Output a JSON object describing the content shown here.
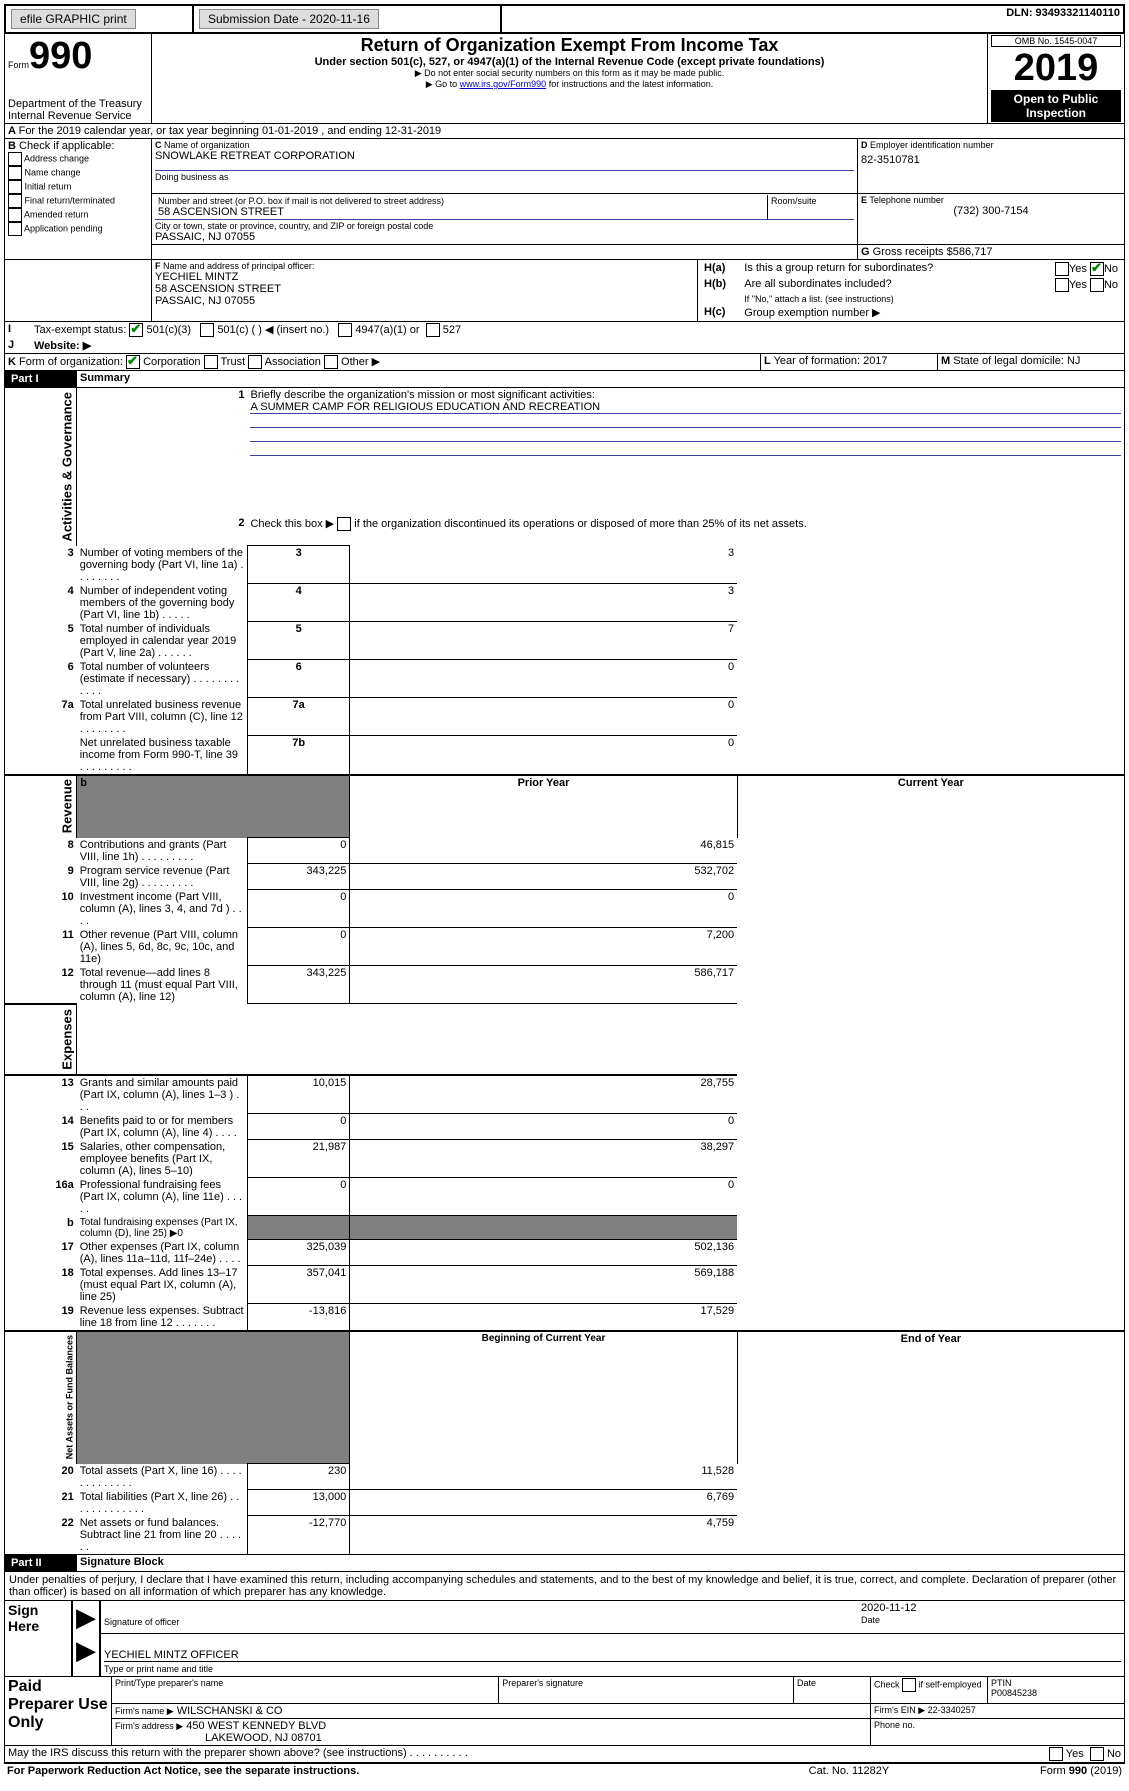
{
  "topbar": {
    "efile": "efile GRAPHIC print",
    "subdate_label": "Submission Date - 2020-11-16",
    "dln": "DLN: 93493321140110"
  },
  "header": {
    "form_label": "Form",
    "form_num": "990",
    "title": "Return of Organization Exempt From Income Tax",
    "subtitle": "Under section 501(c), 527, or 4947(a)(1) of the Internal Revenue Code (except private foundations)",
    "note1": "▶ Do not enter social security numbers on this form as it may be made public.",
    "note2": "▶ Go to ",
    "note2_link": "www.irs.gov/Form990",
    "note2_rest": " for instructions and the latest information.",
    "dept": "Department of the Treasury\nInternal Revenue Service",
    "omb": "OMB No. 1545-0047",
    "year": "2019",
    "open": "Open to Public Inspection"
  },
  "A": {
    "text": "For the 2019 calendar year, or tax year beginning 01-01-2019    , and ending 12-31-2019"
  },
  "B": {
    "label": "Check if applicable:",
    "opts": [
      "Address change",
      "Name change",
      "Initial return",
      "Final return/terminated",
      "Amended return",
      "Application pending"
    ]
  },
  "C": {
    "label": "Name of organization",
    "name": "SNOWLAKE RETREAT CORPORATION",
    "dba_label": "Doing business as",
    "addr_label": "Number and street (or P.O. box if mail is not delivered to street address)",
    "room_label": "Room/suite",
    "addr": "58 ASCENSION STREET",
    "city_label": "City or town, state or province, country, and ZIP or foreign postal code",
    "city": "PASSAIC, NJ  07055"
  },
  "D": {
    "label": "Employer identification number",
    "val": "82-3510781"
  },
  "E": {
    "label": "Telephone number",
    "val": "(732) 300-7154"
  },
  "G": {
    "label": "Gross receipts $",
    "val": "586,717"
  },
  "F": {
    "label": "Name and address of principal officer:",
    "name": "YECHIEL MINTZ",
    "addr": "58 ASCENSION STREET",
    "city": "PASSAIC, NJ  07055"
  },
  "H": {
    "a": "Is this a group return for subordinates?",
    "b": "Are all subordinates included?",
    "b_note": "If \"No,\" attach a list. (see instructions)",
    "c": "Group exemption number ▶",
    "yes": "Yes",
    "no": "No"
  },
  "I": {
    "label": "Tax-exempt status:",
    "c3": "501(c)(3)",
    "c": "501(c) (    ) ◀ (insert no.)",
    "a1": "4947(a)(1) or",
    "s527": "527"
  },
  "J": {
    "label": "Website: ▶"
  },
  "K": {
    "label": "Form of organization:",
    "corp": "Corporation",
    "trust": "Trust",
    "assoc": "Association",
    "other": "Other ▶"
  },
  "L": {
    "label": "Year of formation: 2017"
  },
  "M": {
    "label": "State of legal domicile: NJ"
  },
  "part1": {
    "title": "Part I",
    "heading": "Summary",
    "line1": "Briefly describe the organization's mission or most significant activities:",
    "mission": "A SUMMER CAMP FOR RELIGIOUS EDUCATION AND RECREATION",
    "line2": "Check this box ▶",
    "line2b": " if the organization discontinued its operations or disposed of more than 25% of its net assets.",
    "rows": [
      {
        "n": "3",
        "t": "Number of voting members of the governing body (Part VI, line 1a)  .   .   .   .   .   .   .   .",
        "box": "3",
        "v": "3"
      },
      {
        "n": "4",
        "t": "Number of independent voting members of the governing body (Part VI, line 1b)   .   .   .   .   .",
        "box": "4",
        "v": "3"
      },
      {
        "n": "5",
        "t": "Total number of individuals employed in calendar year 2019 (Part V, line 2a)   .   .   .   .   .   .",
        "box": "5",
        "v": "7"
      },
      {
        "n": "6",
        "t": "Total number of volunteers (estimate if necessary)   .   .   .   .   .   .   .   .   .   .   .   .",
        "box": "6",
        "v": "0"
      },
      {
        "n": "7a",
        "t": "Total unrelated business revenue from Part VIII, column (C), line 12   .   .   .   .   .   .   .   .",
        "box": "7a",
        "v": "0"
      },
      {
        "n": "",
        "t": "Net unrelated business taxable income from Form 990-T, line 39   .   .   .   .   .   .   .   .   .",
        "box": "7b",
        "v": "0"
      }
    ],
    "prior": "Prior Year",
    "current": "Current Year",
    "revenue_rows": [
      {
        "n": "8",
        "t": "Contributions and grants (Part VIII, line 1h)   .   .   .   .   .   .   .   .   .",
        "p": "0",
        "c": "46,815"
      },
      {
        "n": "9",
        "t": "Program service revenue (Part VIII, line 2g)   .   .   .   .   .   .   .   .   .",
        "p": "343,225",
        "c": "532,702"
      },
      {
        "n": "10",
        "t": "Investment income (Part VIII, column (A), lines 3, 4, and 7d )   .   .   .   .",
        "p": "0",
        "c": "0"
      },
      {
        "n": "11",
        "t": "Other revenue (Part VIII, column (A), lines 5, 6d, 8c, 9c, 10c, and 11e)",
        "p": "0",
        "c": "7,200"
      },
      {
        "n": "12",
        "t": "Total revenue—add lines 8 through 11 (must equal Part VIII, column (A), line 12)",
        "p": "343,225",
        "c": "586,717"
      }
    ],
    "expense_rows": [
      {
        "n": "13",
        "t": "Grants and similar amounts paid (Part IX, column (A), lines 1–3 )   .   .   .",
        "p": "10,015",
        "c": "28,755"
      },
      {
        "n": "14",
        "t": "Benefits paid to or for members (Part IX, column (A), line 4)   .   .   .   .",
        "p": "0",
        "c": "0"
      },
      {
        "n": "15",
        "t": "Salaries, other compensation, employee benefits (Part IX, column (A), lines 5–10)",
        "p": "21,987",
        "c": "38,297"
      },
      {
        "n": "16a",
        "t": "Professional fundraising fees (Part IX, column (A), line 11e)   .   .   .   .   .",
        "p": "0",
        "c": "0"
      },
      {
        "n": "b",
        "t": "Total fundraising expenses (Part IX, column (D), line 25) ▶0",
        "p": "",
        "c": "",
        "gray": true,
        "small": true
      },
      {
        "n": "17",
        "t": "Other expenses (Part IX, column (A), lines 11a–11d, 11f–24e)   .   .   .   .",
        "p": "325,039",
        "c": "502,136"
      },
      {
        "n": "18",
        "t": "Total expenses. Add lines 13–17 (must equal Part IX, column (A), line 25)",
        "p": "357,041",
        "c": "569,188"
      },
      {
        "n": "19",
        "t": "Revenue less expenses. Subtract line 18 from line 12   .   .   .   .   .   .   .",
        "p": "-13,816",
        "c": "17,529"
      }
    ],
    "begin": "Beginning of Current Year",
    "end": "End of Year",
    "net_rows": [
      {
        "n": "20",
        "t": "Total assets (Part X, line 16)   .   .   .   .   .   .   .   .   .   .   .   .   .",
        "p": "230",
        "c": "11,528"
      },
      {
        "n": "21",
        "t": "Total liabilities (Part X, line 26)   .   .   .   .   .   .   .   .   .   .   .   .   .",
        "p": "13,000",
        "c": "6,769"
      },
      {
        "n": "22",
        "t": "Net assets or fund balances. Subtract line 21 from line 20   .   .   .   .   .   .",
        "p": "-12,770",
        "c": "4,759"
      }
    ]
  },
  "side_labels": {
    "gov": "Activities & Governance",
    "rev": "Revenue",
    "exp": "Expenses",
    "net": "Net Assets or Fund Balances"
  },
  "part2": {
    "title": "Part II",
    "heading": "Signature Block",
    "declaration": "Under penalties of perjury, I declare that I have examined this return, including accompanying schedules and statements, and to the best of my knowledge and belief, it is true, correct, and complete. Declaration of preparer (other than officer) is based on all information of which preparer has any knowledge.",
    "sign_here": "Sign Here",
    "sig_officer": "Signature of officer",
    "date": "Date",
    "date_val": "2020-11-12",
    "officer_name": "YECHIEL MINTZ OFFICER",
    "type_name": "Type or print name and title",
    "paid": "Paid Preparer Use Only",
    "prep_name_label": "Print/Type preparer's name",
    "prep_sig_label": "Preparer's signature",
    "date_label": "Date",
    "check_self": "Check",
    "check_self2": "if self-employed",
    "ptin": "PTIN",
    "ptin_val": "P00845238",
    "firm_name_label": "Firm's name     ▶",
    "firm_name": "WILSCHANSKI & CO",
    "firm_ein_label": "Firm's EIN ▶",
    "firm_ein": "22-3340257",
    "firm_addr_label": "Firm's address ▶",
    "firm_addr": "450 WEST KENNEDY BLVD",
    "firm_city": "LAKEWOOD, NJ  08701",
    "phone_label": "Phone no.",
    "discuss": "May the IRS discuss this return with the preparer shown above? (see instructions)   .   .   .   .   .   .   .   .   .   .",
    "paperwork": "For Paperwork Reduction Act Notice, see the separate instructions.",
    "cat": "Cat. No. 11282Y",
    "form_foot": "Form 990 (2019)"
  }
}
